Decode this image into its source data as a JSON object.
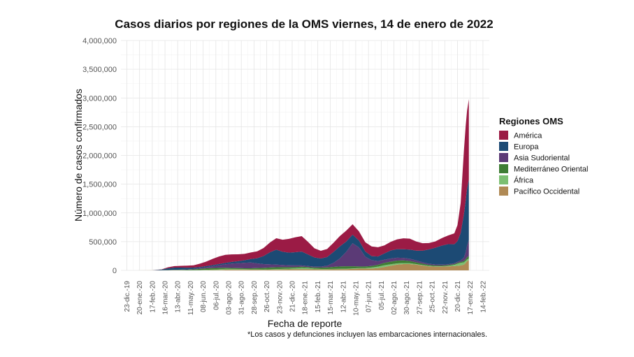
{
  "chart_data": {
    "type": "area",
    "stacked": true,
    "title": "Casos diarios por regiones de la OMS viernes, 14 de enero de 2022",
    "xlabel": "Fecha de reporte",
    "ylabel": "Número de casos confirmados",
    "caption": "*Los casos y defunciones incluyen las embarcaciones internacionales.",
    "ylim": [
      0,
      4000000
    ],
    "y_ticks": [
      "0",
      "500,000",
      "1,000,000",
      "1,500,000",
      "2,000,000",
      "2,500,000",
      "3,000,000",
      "3,500,000",
      "4,000,000"
    ],
    "y_tick_values": [
      0,
      500000,
      1000000,
      1500000,
      2000000,
      2500000,
      3000000,
      3500000,
      4000000
    ],
    "x_ticks": [
      "23-dic.-19",
      "20-ene.-20",
      "17-feb.-20",
      "16-mar.-20",
      "13-abr.-20",
      "11-may.-20",
      "08-jun.-20",
      "06-jul.-20",
      "03-ago.-20",
      "31-ago.-20",
      "28-sep.-20",
      "26-oct.-20",
      "23-nov.-20",
      "21-dic.-20",
      "18-ene.-21",
      "15-feb.-21",
      "15-mar.-21",
      "12-abr.-21",
      "10-may.-21",
      "07-jun.-21",
      "05-jul.-21",
      "02-ago.-21",
      "30-ago.-21",
      "27-sep.-21",
      "25-oct.-21",
      "22-nov.-21",
      "20-dic.-21",
      "17-ene.-22",
      "14-feb.-22"
    ],
    "grid": true,
    "legend": {
      "title": "Regiones OMS",
      "position": "right",
      "items": [
        {
          "name": "América",
          "color": "#9b1b45"
        },
        {
          "name": "Europa",
          "color": "#1c4a74"
        },
        {
          "name": "Asia Sudoriental",
          "color": "#5b3a76"
        },
        {
          "name": "Mediterráneo Oriental",
          "color": "#3e7d34"
        },
        {
          "name": "África",
          "color": "#7cbf72"
        },
        {
          "name": "Pacífico Occidental",
          "color": "#b08a55"
        }
      ]
    },
    "x": [
      "2020-01-13",
      "2020-02-17",
      "2020-03-09",
      "2020-03-23",
      "2020-04-06",
      "2020-04-20",
      "2020-05-04",
      "2020-05-18",
      "2020-06-01",
      "2020-06-15",
      "2020-06-29",
      "2020-07-13",
      "2020-07-27",
      "2020-08-10",
      "2020-08-24",
      "2020-09-07",
      "2020-09-21",
      "2020-10-05",
      "2020-10-19",
      "2020-11-02",
      "2020-11-16",
      "2020-11-30",
      "2020-12-14",
      "2020-12-28",
      "2021-01-11",
      "2021-01-25",
      "2021-02-08",
      "2021-02-22",
      "2021-03-08",
      "2021-03-22",
      "2021-04-05",
      "2021-04-19",
      "2021-05-03",
      "2021-05-17",
      "2021-05-31",
      "2021-06-14",
      "2021-06-28",
      "2021-07-12",
      "2021-07-26",
      "2021-08-09",
      "2021-08-23",
      "2021-09-06",
      "2021-09-20",
      "2021-10-04",
      "2021-10-18",
      "2021-11-01",
      "2021-11-15",
      "2021-11-29",
      "2021-12-13",
      "2021-12-20",
      "2021-12-27",
      "2022-01-03",
      "2022-01-07",
      "2022-01-10",
      "2022-01-14"
    ],
    "series": [
      {
        "name": "Pacífico Occidental",
        "values": [
          200,
          2000,
          2000,
          3000,
          4000,
          3000,
          2000,
          2000,
          3000,
          5000,
          6000,
          8000,
          12000,
          14000,
          14000,
          13000,
          12000,
          12000,
          11000,
          12000,
          14000,
          16000,
          18000,
          20000,
          22000,
          21000,
          18000,
          16000,
          16000,
          18000,
          20000,
          22000,
          26000,
          30000,
          30000,
          32000,
          40000,
          60000,
          80000,
          100000,
          110000,
          110000,
          100000,
          85000,
          70000,
          65000,
          65000,
          70000,
          75000,
          80000,
          85000,
          100000,
          130000,
          160000,
          180000
        ]
      },
      {
        "name": "África",
        "values": [
          0,
          0,
          100,
          300,
          800,
          1000,
          1500,
          2500,
          3500,
          6000,
          9000,
          12000,
          14000,
          12000,
          10000,
          8000,
          7000,
          7000,
          7000,
          8000,
          9000,
          10000,
          12000,
          16000,
          22000,
          18000,
          12000,
          9000,
          8000,
          8000,
          8000,
          8000,
          8000,
          9000,
          12000,
          18000,
          25000,
          30000,
          27000,
          22000,
          18000,
          14000,
          10000,
          8000,
          7000,
          6000,
          6000,
          8000,
          20000,
          35000,
          45000,
          40000,
          35000,
          30000,
          25000
        ]
      },
      {
        "name": "Mediterráneo Oriental",
        "values": [
          0,
          0,
          1000,
          2500,
          5000,
          7000,
          9000,
          14000,
          20000,
          25000,
          26000,
          24000,
          20000,
          17000,
          15000,
          16000,
          18000,
          22000,
          26000,
          30000,
          32000,
          30000,
          26000,
          22000,
          20000,
          19000,
          20000,
          23000,
          28000,
          35000,
          40000,
          42000,
          38000,
          30000,
          27000,
          27000,
          32000,
          40000,
          45000,
          48000,
          45000,
          38000,
          30000,
          24000,
          18000,
          15000,
          14000,
          14000,
          15000,
          16000,
          18000,
          22000,
          30000,
          38000,
          45000
        ]
      },
      {
        "name": "Asia Sudoriental",
        "values": [
          0,
          0,
          100,
          400,
          1200,
          2500,
          5000,
          8000,
          13000,
          20000,
          30000,
          45000,
          60000,
          75000,
          85000,
          95000,
          100000,
          80000,
          65000,
          55000,
          45000,
          38000,
          32000,
          28000,
          22000,
          18000,
          15000,
          18000,
          30000,
          70000,
          140000,
          250000,
          400000,
          330000,
          170000,
          100000,
          65000,
          55000,
          55000,
          50000,
          45000,
          40000,
          33000,
          25000,
          20000,
          17000,
          15000,
          14000,
          15000,
          18000,
          25000,
          60000,
          120000,
          200000,
          280000
        ]
      },
      {
        "name": "Europa",
        "values": [
          0,
          100,
          12000,
          30000,
          38000,
          35000,
          30000,
          22000,
          18000,
          18000,
          20000,
          22000,
          25000,
          30000,
          35000,
          45000,
          60000,
          90000,
          140000,
          210000,
          260000,
          230000,
          220000,
          230000,
          240000,
          200000,
          160000,
          140000,
          150000,
          190000,
          210000,
          180000,
          150000,
          120000,
          90000,
          70000,
          80000,
          110000,
          140000,
          150000,
          150000,
          160000,
          170000,
          200000,
          250000,
          290000,
          330000,
          350000,
          330000,
          360000,
          480000,
          750000,
          900000,
          1000000,
          1050000
        ]
      },
      {
        "name": "América",
        "values": [
          0,
          0,
          3000,
          18000,
          25000,
          30000,
          35000,
          40000,
          60000,
          80000,
          110000,
          130000,
          140000,
          130000,
          120000,
          110000,
          115000,
          120000,
          140000,
          170000,
          200000,
          210000,
          240000,
          260000,
          270000,
          220000,
          160000,
          135000,
          140000,
          160000,
          180000,
          190000,
          180000,
          160000,
          160000,
          170000,
          160000,
          140000,
          150000,
          170000,
          190000,
          190000,
          160000,
          130000,
          110000,
          110000,
          130000,
          150000,
          190000,
          280000,
          520000,
          1100000,
          1300000,
          1350000,
          1400000
        ]
      }
    ]
  }
}
